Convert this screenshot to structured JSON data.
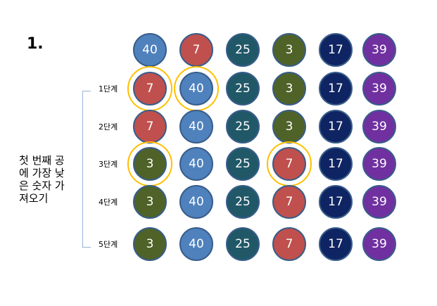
{
  "title": "1.",
  "description_lines": [
    "첫 번째 공",
    "에 가장 낮",
    "은 숫자 가",
    "져오기"
  ],
  "steps": [
    "1단계",
    "2단계",
    "3단계",
    "4단계",
    "5단계"
  ],
  "colors": {
    "40": "#4F81BD",
    "7": "#C0504D",
    "25": "#215868",
    "3": "#4F6228",
    "17": "#0F2462",
    "39": "#7030A0",
    "highlight": "#FFC000"
  },
  "rows": [
    {
      "balls": [
        "40",
        "7",
        "25",
        "3",
        "17",
        "39"
      ],
      "highlighted": []
    },
    {
      "balls": [
        "7",
        "40",
        "25",
        "3",
        "17",
        "39"
      ],
      "highlighted": [
        0,
        1
      ]
    },
    {
      "balls": [
        "7",
        "40",
        "25",
        "3",
        "17",
        "39"
      ],
      "highlighted": []
    },
    {
      "balls": [
        "3",
        "40",
        "25",
        "7",
        "17",
        "39"
      ],
      "highlighted": [
        0,
        3
      ]
    },
    {
      "balls": [
        "3",
        "40",
        "25",
        "7",
        "17",
        "39"
      ],
      "highlighted": []
    },
    {
      "balls": [
        "3",
        "40",
        "25",
        "7",
        "17",
        "39"
      ],
      "highlighted": []
    }
  ]
}
